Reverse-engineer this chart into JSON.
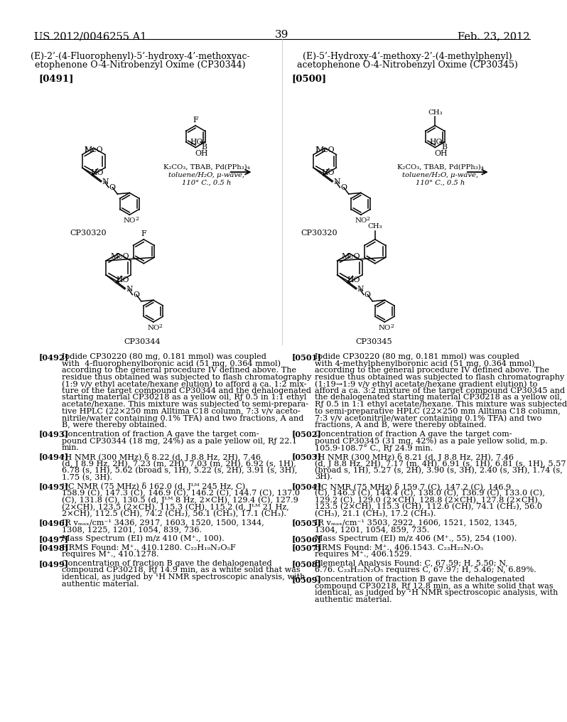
{
  "page_header_left": "US 2012/0046255 A1",
  "page_header_right": "Feb. 23, 2012",
  "page_number": "39",
  "bg_color": "#ffffff",
  "text_color": "#000000",
  "left_title_line1": "(E)-2’-(4-Fluorophenyl)-5’-hydroxy-4’-methoxyac-",
  "left_title_line2": "etophenone O-4-Nitrobenzyl Oxime (CP30344)",
  "right_title_line1": "(E)-5’-Hydroxy-4’-methoxy-2’-(4-methylphenyl)",
  "right_title_line2": "acetophenone O-4-Nitrobenzyl Oxime (CP30345)",
  "left_ref": "[0491]",
  "right_ref": "[0500]",
  "left_paragraphs": [
    {
      "tag": "[0492]",
      "text": "Iodide CP30220 (80 mg, 0.181 mmol) was coupled\nwith  4-fluorophenylboronic acid (51 mg, 0.364 mmol)\naccording to the general procedure IV defined above. The\nresidue thus obtained was subjected to flash chromatography\n(1:9 v/v ethyl acetate/hexane elution) to afford a ca. 1:2 mix-\nture of the target compound CP30344 and the dehalogenated\nstarting material CP30218 as a yellow oil, Rƒ 0.5 in 1:1 ethyl\nacetate/hexane. This mixture was subjected to semi-prepara-\ntive HPLC (22×250 mm Alltima C18 column, 7:3 v/v aceto-\nnitrile/water containing 0.1% TFA) and two fractions, A and\nB, were thereby obtained."
    },
    {
      "tag": "[0493]",
      "text": "Concentration of fraction A gave the target com-\npound CP30344 (18 mg, 24%) as a pale yellow oil, Rƒ 22.1\nmin."
    },
    {
      "tag": "[0494]",
      "text": "¹H NMR (300 MHz) δ 8.22 (d, J 8.8 Hz, 2H), 7.46\n(d, J 8.9 Hz, 2H), 7.23 (m, 2H), 7.03 (m, 2H), 6.92 (s, 1H),\n6.78 (s, 1H), 5.62 (broad s, 1H), 5.22 (s, 2H), 3.91 (s, 3H),\n1.75 (s, 3H)."
    },
    {
      "tag": "[0495]",
      "text": "¹³C NMR (75 MHz) δ 162.0 (d, Jᴸᴹ 245 Hz, C),\n158.9 (C), 147.3 (C), 146.9 (C), 146.2 (C), 144.7 (C), 137.0\n(C), 131.8 (C), 130.5 (d, Jᴸᴹ 8 Hz, 2×CH), 129.4 (C), 127.9\n(2×CH), 123.5 (2×CH), 115.3 (CH), 115.2 (d, Jᴸᴹ 21 Hz,\n2×CH), 112.5 (CH), 74.2 (CH₂), 56.1 (CH₃), 17.1 (CH₃)."
    },
    {
      "tag": "[0496]",
      "text": "IR vₘₐₓ/cm⁻¹ 3436, 2917, 1603, 1520, 1500, 1344,\n1308, 1225, 1201, 1054, 839, 736."
    },
    {
      "tag": "[0497]",
      "text": "Mass Spectrum (EI) m/z 410 (M⁺., 100)."
    },
    {
      "tag": "[0498]",
      "text": "HRMS Found: M⁺., 410.1280. C₂₂H₁₉N₂O₅F\nrequires M⁺., 410.1278."
    },
    {
      "tag": "[0499]",
      "text": "Concentration of fraction B gave the dehalogenated\ncompound CP30218, Rƒ 14.9 min, as a white solid that was\nidentical, as judged by ¹H NMR spectroscopic analysis, with\nauthentic material."
    }
  ],
  "right_paragraphs": [
    {
      "tag": "[0501]",
      "text": "Iodide CP30220 (80 mg, 0.181 mmol) was coupled\nwith 4-methylphenylboronic acid (51 mg, 0.364 mmol)\naccording to the general procedure IV defined above. The\nresidue thus obtained was subjected to flash chromatography\n(1:19→1:9 v/v ethyl acetate/hexane gradient elution) to\nafford a ca. 3:2 mixture of the target compound CP30345 and\nthe dehalogenated starting material CP30218 as a yellow oil,\nRƒ 0.5 in 1:1 ethyl acetate/hexane. This mixture was subjected\nto semi-preparative HPLC (22×250 mm Alltima C18 column,\n7:3 v/v acetonitrile/water containing 0.1% TFA) and two\nfractions, A and B, were thereby obtained."
    },
    {
      "tag": "[0502]",
      "text": "Concentration of fraction A gave the target com-\npound CP30345 (31 mg, 42%) as a pale yellow solid, m.p.\n105.9-108.7° C., Rƒ 24.9 min."
    },
    {
      "tag": "[0503]",
      "text": "¹H NMR (300 MHz) δ 8.21 (d, J 8.8 Hz, 2H), 7.46\n(d, J 8.8 Hz, 2H), 7.17 (m, 4H), 6.91 (s, 1H), 6.81 (s, 1H), 5.57\n(broad s, 1H), 5.27 (s, 2H), 3.90 (s, 3H), 2.40 (s, 3H), 1.74 (s,\n3H)."
    },
    {
      "tag": "[0504]",
      "text": "¹³C NMR (75 MHz) δ 159.7 (C), 147.2 (C), 146.9\n(C), 146.3 (C), 144.4 (C), 138.0 (C), 136.9 (C), 133.0 (C),\n129.2 (C), 129.0 (2×CH), 128.8 (2×CH), 127.8 (2×CH),\n123.5 (2×CH), 115.3 (CH), 112.6 (CH), 74.1 (CH₂), 56.0\n(CH₃), 21.1 (CH₃), 17.2 (CH₃)."
    },
    {
      "tag": "[0505]",
      "text": "IR vₘₐₓ/cm⁻¹ 3503, 2922, 1606, 1521, 1502, 1345,\n1304, 1201, 1054, 859, 735."
    },
    {
      "tag": "[0506]",
      "text": "Mass Spectrum (EI) m/z 406 (M⁺., 55), 254 (100)."
    },
    {
      "tag": "[0507]",
      "text": "HRMS Found: M⁺., 406.1543. C₂₃H₂₂N₂O₅\nrequires M⁺., 406.1529."
    },
    {
      "tag": "[0508]",
      "text": "Elemental Analysis Found: C, 67.59; H, 5.50; N,\n6.76. C₂₃H₂₂N₂O₅ requires C, 67.97; H, 5.46; N, 6.89%."
    },
    {
      "tag": "[0509]",
      "text": "Concentration of fraction B gave the dehalogenated\ncompound CP30218, Rƒ 12.8 min, as a white solid that was\nidentical, as judged by ¹H NMR spectroscopic analysis, with\nauthentic material."
    }
  ]
}
